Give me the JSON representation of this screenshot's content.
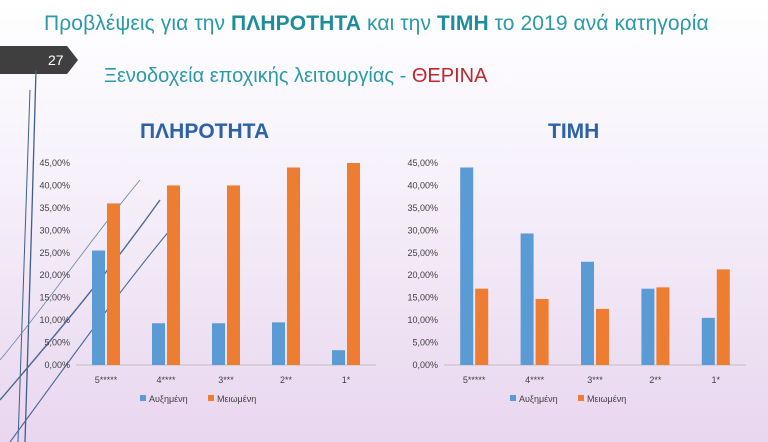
{
  "slide": {
    "title_pre": "Προβλέψεις για την ",
    "title_b1": "ΠΛΗΡΟΤΗΤΑ",
    "title_mid": " και την ",
    "title_b2": "ΤΙΜΗ",
    "title_post": " το 2019 ανά κατηγορία",
    "page_number": "27",
    "subtitle_main": "Ξενοδοχεία εποχικής λειτουργίας - ",
    "subtitle_red": "ΘΕΡΙΝΑ"
  },
  "colors": {
    "increased": "#5b9bd5",
    "decreased": "#ed7d31",
    "chart_title": "#2b62a8"
  },
  "chart_data": [
    {
      "type": "bar",
      "title": "ΠΛΗΡΟΤΗΤΑ",
      "categories": [
        "5*****",
        "4****",
        "3***",
        "2**",
        "1*"
      ],
      "series": [
        {
          "name": "Αυξημένη",
          "values": [
            25.5,
            9.3,
            9.3,
            9.5,
            3.3
          ]
        },
        {
          "name": "Μειωμένη",
          "values": [
            36.0,
            40.0,
            40.0,
            44.0,
            45.0
          ]
        }
      ],
      "ylim": [
        0,
        45
      ],
      "yticks": [
        "0,00%",
        "5,00%",
        "10,00%",
        "15,00%",
        "20,00%",
        "25,00%",
        "30,00%",
        "35,00%",
        "40,00%",
        "45,00%"
      ],
      "legend": "bottom",
      "grid": false
    },
    {
      "type": "bar",
      "title": "ΤΙΜΗ",
      "categories": [
        "5*****",
        "4****",
        "3***",
        "2**",
        "1*"
      ],
      "series": [
        {
          "name": "Αυξημένη",
          "values": [
            44.0,
            29.3,
            23.0,
            17.0,
            10.5
          ]
        },
        {
          "name": "Μειωμένη",
          "values": [
            17.0,
            14.7,
            12.5,
            17.3,
            21.3
          ]
        }
      ],
      "ylim": [
        0,
        45
      ],
      "yticks": [
        "0,00%",
        "5,00%",
        "10,00%",
        "15,00%",
        "20,00%",
        "25,00%",
        "30,00%",
        "35,00%",
        "40,00%",
        "45,00%"
      ],
      "legend": "bottom",
      "grid": false
    }
  ]
}
